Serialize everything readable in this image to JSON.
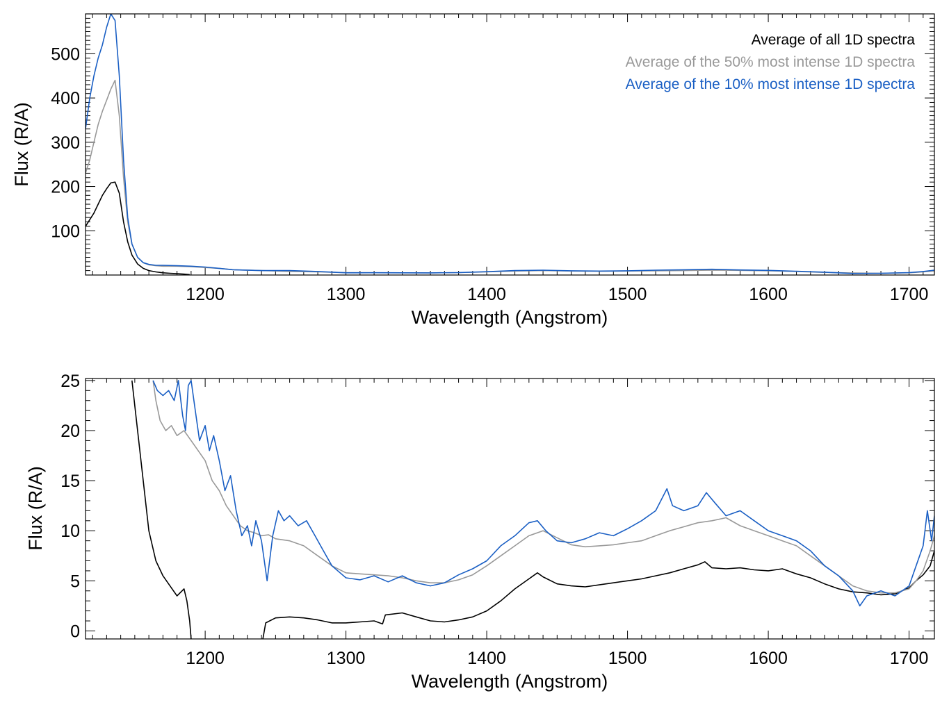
{
  "colors": {
    "all": "#000000",
    "top50": "#999999",
    "top10": "#1a5fc4",
    "axis": "#000000"
  },
  "chart_data": [
    {
      "type": "line",
      "panel": "top",
      "title": "",
      "xlabel": "Wavelength (Angstrom)",
      "ylabel": "Flux (R/A)",
      "xlim": [
        1115,
        1718
      ],
      "ylim": [
        0,
        590
      ],
      "xticks": [
        1200,
        1300,
        1400,
        1500,
        1600,
        1700
      ],
      "yticks": [
        100,
        200,
        300,
        400,
        500
      ],
      "legend_position": "top-right",
      "series": [
        {
          "name": "Average of all 1D spectra",
          "color": "#000000",
          "x": [
            1115,
            1118,
            1121,
            1124,
            1127,
            1130,
            1133,
            1136,
            1139,
            1142,
            1145,
            1148,
            1152,
            1156,
            1160,
            1165,
            1170,
            1175,
            1180,
            1185,
            1189
          ],
          "y": [
            110,
            125,
            140,
            160,
            180,
            195,
            208,
            210,
            185,
            120,
            75,
            45,
            25,
            15,
            10,
            7,
            5,
            4,
            3,
            2,
            1
          ]
        },
        {
          "name": "Average of the 50% most intense 1D spectra",
          "color": "#999999",
          "x": [
            1115,
            1118,
            1121,
            1124,
            1127,
            1130,
            1133,
            1136,
            1139,
            1142,
            1145,
            1148,
            1152,
            1156,
            1160,
            1165,
            1170,
            1180,
            1190,
            1200,
            1210,
            1220,
            1240,
            1260,
            1280,
            1300,
            1320,
            1340,
            1360,
            1380,
            1400,
            1420,
            1440,
            1460,
            1480,
            1500,
            1520,
            1540,
            1560,
            1580,
            1600,
            1620,
            1640,
            1660,
            1680,
            1700,
            1710,
            1718
          ],
          "y": [
            230,
            260,
            300,
            340,
            370,
            395,
            420,
            440,
            360,
            220,
            120,
            70,
            40,
            28,
            23,
            21,
            20,
            20,
            19,
            17,
            15,
            12,
            10,
            8,
            7,
            5.5,
            5.2,
            5.0,
            4.8,
            5.5,
            7.0,
            9.0,
            10.0,
            9.0,
            8.5,
            9.0,
            9.5,
            10.0,
            11.0,
            10.5,
            9.5,
            8.0,
            6.0,
            4.5,
            4.0,
            5.0,
            7.0,
            9.0
          ]
        },
        {
          "name": "Average of the 10% most intense 1D spectra",
          "color": "#1a5fc4",
          "x": [
            1115,
            1118,
            1121,
            1124,
            1127,
            1130,
            1133,
            1136,
            1139,
            1142,
            1145,
            1148,
            1152,
            1156,
            1160,
            1165,
            1170,
            1180,
            1190,
            1200,
            1210,
            1220,
            1240,
            1260,
            1280,
            1300,
            1320,
            1340,
            1360,
            1380,
            1400,
            1420,
            1440,
            1460,
            1480,
            1500,
            1520,
            1540,
            1560,
            1580,
            1600,
            1620,
            1640,
            1660,
            1680,
            1700,
            1710,
            1718
          ],
          "y": [
            330,
            400,
            450,
            490,
            520,
            560,
            590,
            575,
            450,
            260,
            130,
            70,
            40,
            28,
            24,
            22,
            22,
            21,
            20,
            18,
            15,
            12,
            10,
            10,
            8,
            5,
            5.2,
            5.0,
            4.8,
            5.5,
            7.5,
            10.0,
            11.0,
            9.5,
            9.0,
            9.5,
            11.0,
            12.0,
            13.0,
            11.5,
            10.5,
            8.5,
            6.5,
            3.5,
            4.0,
            5.5,
            8.0,
            11.0
          ]
        }
      ]
    },
    {
      "type": "line",
      "panel": "bottom",
      "title": "",
      "xlabel": "Wavelength (Angstrom)",
      "ylabel": "Flux (R/A)",
      "xlim": [
        1115,
        1718
      ],
      "ylim": [
        -0.8,
        25.2
      ],
      "xticks": [
        1200,
        1300,
        1400,
        1500,
        1600,
        1700
      ],
      "yticks": [
        0,
        5,
        10,
        15,
        20,
        25
      ],
      "series": [
        {
          "name": "Average of all 1D spectra",
          "color": "#000000",
          "x": [
            1148,
            1152,
            1156,
            1160,
            1165,
            1170,
            1175,
            1180,
            1185,
            1187,
            1189,
            1190
          ],
          "y": [
            25,
            20,
            15,
            10,
            7,
            5.5,
            4.5,
            3.5,
            4.2,
            3.0,
            1.0,
            -0.8
          ],
          "x2": [
            1241,
            1243,
            1250,
            1260,
            1270,
            1280,
            1290,
            1300,
            1310,
            1320,
            1326,
            1328,
            1340,
            1350,
            1360,
            1370,
            1380,
            1390,
            1400,
            1410,
            1420,
            1430,
            1436,
            1440,
            1450,
            1460,
            1470,
            1480,
            1490,
            1500,
            1510,
            1520,
            1530,
            1540,
            1550,
            1555,
            1560,
            1570,
            1580,
            1590,
            1600,
            1610,
            1620,
            1630,
            1640,
            1650,
            1660,
            1670,
            1680,
            1690,
            1700,
            1705,
            1710,
            1715,
            1718
          ],
          "y2": [
            -0.8,
            0.8,
            1.3,
            1.4,
            1.3,
            1.1,
            0.8,
            0.8,
            0.9,
            1.0,
            0.7,
            1.6,
            1.8,
            1.4,
            1.0,
            0.9,
            1.1,
            1.4,
            2.0,
            3.0,
            4.2,
            5.2,
            5.8,
            5.4,
            4.7,
            4.5,
            4.4,
            4.6,
            4.8,
            5.0,
            5.2,
            5.5,
            5.8,
            6.2,
            6.6,
            6.9,
            6.3,
            6.2,
            6.3,
            6.1,
            6.0,
            6.2,
            5.7,
            5.3,
            4.7,
            4.2,
            3.9,
            3.8,
            3.6,
            3.7,
            4.3,
            5.0,
            5.6,
            6.5,
            8.0
          ]
        },
        {
          "name": "Average of the 50% most intense 1D spectra",
          "color": "#999999",
          "x": [
            1163,
            1165,
            1168,
            1172,
            1176,
            1180,
            1185,
            1190,
            1195,
            1200,
            1205,
            1210,
            1215,
            1220,
            1225,
            1230,
            1235,
            1240,
            1245,
            1250,
            1260,
            1270,
            1280,
            1290,
            1300,
            1310,
            1320,
            1330,
            1340,
            1350,
            1360,
            1370,
            1380,
            1390,
            1400,
            1410,
            1420,
            1430,
            1440,
            1450,
            1460,
            1470,
            1480,
            1490,
            1500,
            1510,
            1520,
            1530,
            1540,
            1550,
            1560,
            1570,
            1580,
            1590,
            1600,
            1610,
            1620,
            1630,
            1640,
            1650,
            1660,
            1670,
            1680,
            1690,
            1700,
            1705,
            1710,
            1715,
            1718
          ],
          "y": [
            25.0,
            23.0,
            21.0,
            20.0,
            20.5,
            19.5,
            20.0,
            19.0,
            18.0,
            17.0,
            15.0,
            14.0,
            12.5,
            11.5,
            10.5,
            10.0,
            9.8,
            9.5,
            9.6,
            9.2,
            9.0,
            8.5,
            7.5,
            6.5,
            5.8,
            5.7,
            5.6,
            5.5,
            5.3,
            5.0,
            4.8,
            4.8,
            5.1,
            5.6,
            6.5,
            7.5,
            8.5,
            9.5,
            10.0,
            9.3,
            8.6,
            8.4,
            8.5,
            8.6,
            8.8,
            9.0,
            9.5,
            10.0,
            10.4,
            10.8,
            11.0,
            11.3,
            10.5,
            10.0,
            9.5,
            9.0,
            8.5,
            7.5,
            6.5,
            5.5,
            4.5,
            4.0,
            3.8,
            3.8,
            4.2,
            5.0,
            6.0,
            8.0,
            9.5
          ]
        },
        {
          "name": "Average of the 10% most intense 1D spectra",
          "color": "#1a5fc4",
          "x": [
            1163,
            1166,
            1170,
            1174,
            1178,
            1181,
            1184,
            1186,
            1188,
            1190,
            1193,
            1196,
            1200,
            1203,
            1206,
            1210,
            1214,
            1218,
            1222,
            1226,
            1230,
            1233,
            1236,
            1240,
            1244,
            1248,
            1252,
            1256,
            1260,
            1266,
            1272,
            1278,
            1284,
            1290,
            1300,
            1310,
            1320,
            1330,
            1340,
            1350,
            1360,
            1370,
            1380,
            1390,
            1400,
            1410,
            1420,
            1430,
            1436,
            1442,
            1450,
            1460,
            1470,
            1480,
            1490,
            1500,
            1510,
            1520,
            1528,
            1532,
            1540,
            1550,
            1556,
            1562,
            1570,
            1580,
            1590,
            1600,
            1610,
            1620,
            1630,
            1640,
            1650,
            1660,
            1665,
            1670,
            1680,
            1690,
            1700,
            1705,
            1710,
            1713,
            1716,
            1718
          ],
          "y": [
            25.0,
            24.0,
            23.5,
            24.0,
            23.0,
            25.0,
            21.5,
            20.0,
            24.5,
            25.0,
            22.0,
            19.0,
            20.5,
            18.0,
            19.5,
            17.0,
            14.0,
            15.5,
            12.0,
            9.5,
            10.5,
            8.5,
            11.0,
            9.0,
            5.0,
            9.5,
            12.0,
            11.0,
            11.5,
            10.5,
            11.0,
            9.5,
            8.0,
            6.5,
            5.3,
            5.1,
            5.5,
            4.9,
            5.5,
            4.8,
            4.5,
            4.8,
            5.6,
            6.2,
            7.0,
            8.5,
            9.5,
            10.8,
            11.0,
            10.0,
            9.0,
            8.8,
            9.2,
            9.8,
            9.5,
            10.2,
            11.0,
            12.0,
            14.2,
            12.5,
            12.0,
            12.5,
            13.8,
            12.8,
            11.5,
            12.0,
            11.0,
            10.0,
            9.5,
            9.0,
            8.0,
            6.5,
            5.5,
            4.0,
            2.5,
            3.5,
            4.0,
            3.5,
            4.5,
            6.5,
            8.5,
            12.0,
            9.0,
            11.5
          ]
        }
      ]
    }
  ]
}
